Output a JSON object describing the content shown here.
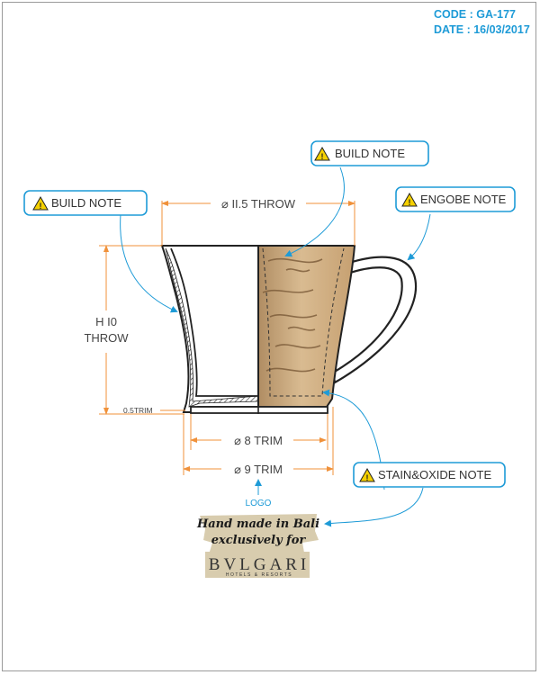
{
  "header": {
    "code_label": "CODE : GA-177",
    "date_label": "DATE : 16/03/2017"
  },
  "notes": {
    "build_note_top": "BUILD NOTE",
    "build_note_left": "BUILD NOTE",
    "engobe_note": "ENGOBE NOTE",
    "stain_oxide_note": "STAIN&OXIDE NOTE"
  },
  "dimensions": {
    "top_width": "⌀ II.5 THROW",
    "height_line1": "H I0",
    "height_line2": "THROW",
    "trim_thickness": "0.5TRIM",
    "inner_base": "⌀ 8 TRIM",
    "outer_base": "⌀ 9 TRIM"
  },
  "logo": {
    "label": "LOGO",
    "stamp_line1": "Hand made in Bali",
    "stamp_line2": "exclusively for",
    "brand_name": "BVLGARI",
    "brand_sub": "HOTELS & RESORTS"
  },
  "colors": {
    "accent": "#1e9bd7",
    "dimension": "#f0913a",
    "glaze": "#c8a57a",
    "outline": "#222222"
  }
}
